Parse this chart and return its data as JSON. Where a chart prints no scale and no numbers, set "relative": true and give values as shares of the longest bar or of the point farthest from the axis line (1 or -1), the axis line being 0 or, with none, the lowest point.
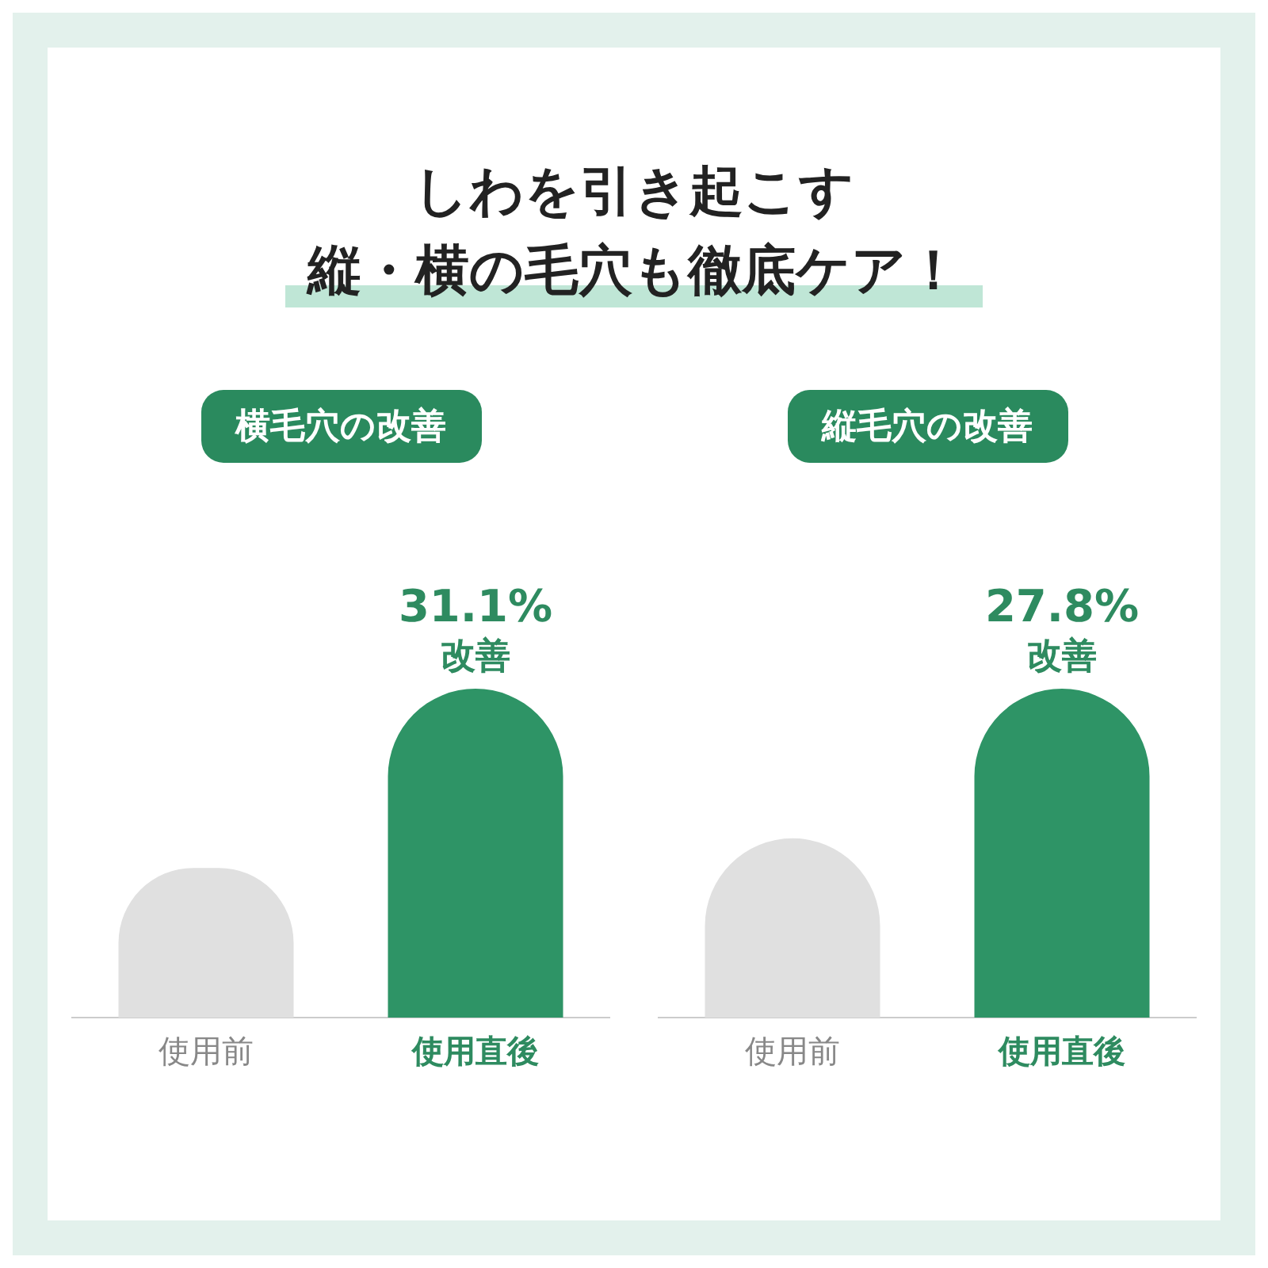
{
  "chart_data": [
    {
      "type": "other",
      "title": "しわを引き起こす",
      "subtitle": "縦・横の毛穴も徹底ケア！"
    },
    {
      "type": "bar",
      "title": "横毛穴の改善",
      "categories": [
        "使用前",
        "使用直後"
      ],
      "values": [
        0.455,
        1
      ],
      "colors": [
        "#e0e0e0",
        "#2e9466"
      ],
      "relative": true,
      "annotations": [
        {
          "text": "31.1%",
          "x": "使用直後",
          "y": 1
        },
        {
          "text": "改善",
          "x": "使用直後",
          "y": 1
        }
      ]
    },
    {
      "type": "bar",
      "title": "縦毛穴の改善",
      "categories": [
        "使用前",
        "使用直後"
      ],
      "values": [
        0.545,
        1
      ],
      "colors": [
        "#e0e0e0",
        "#2e9466"
      ],
      "relative": true,
      "annotations": [
        {
          "text": "27.8%",
          "x": "使用直後",
          "y": 1
        },
        {
          "text": "改善",
          "x": "使用直後",
          "y": 1
        }
      ]
    }
  ]
}
